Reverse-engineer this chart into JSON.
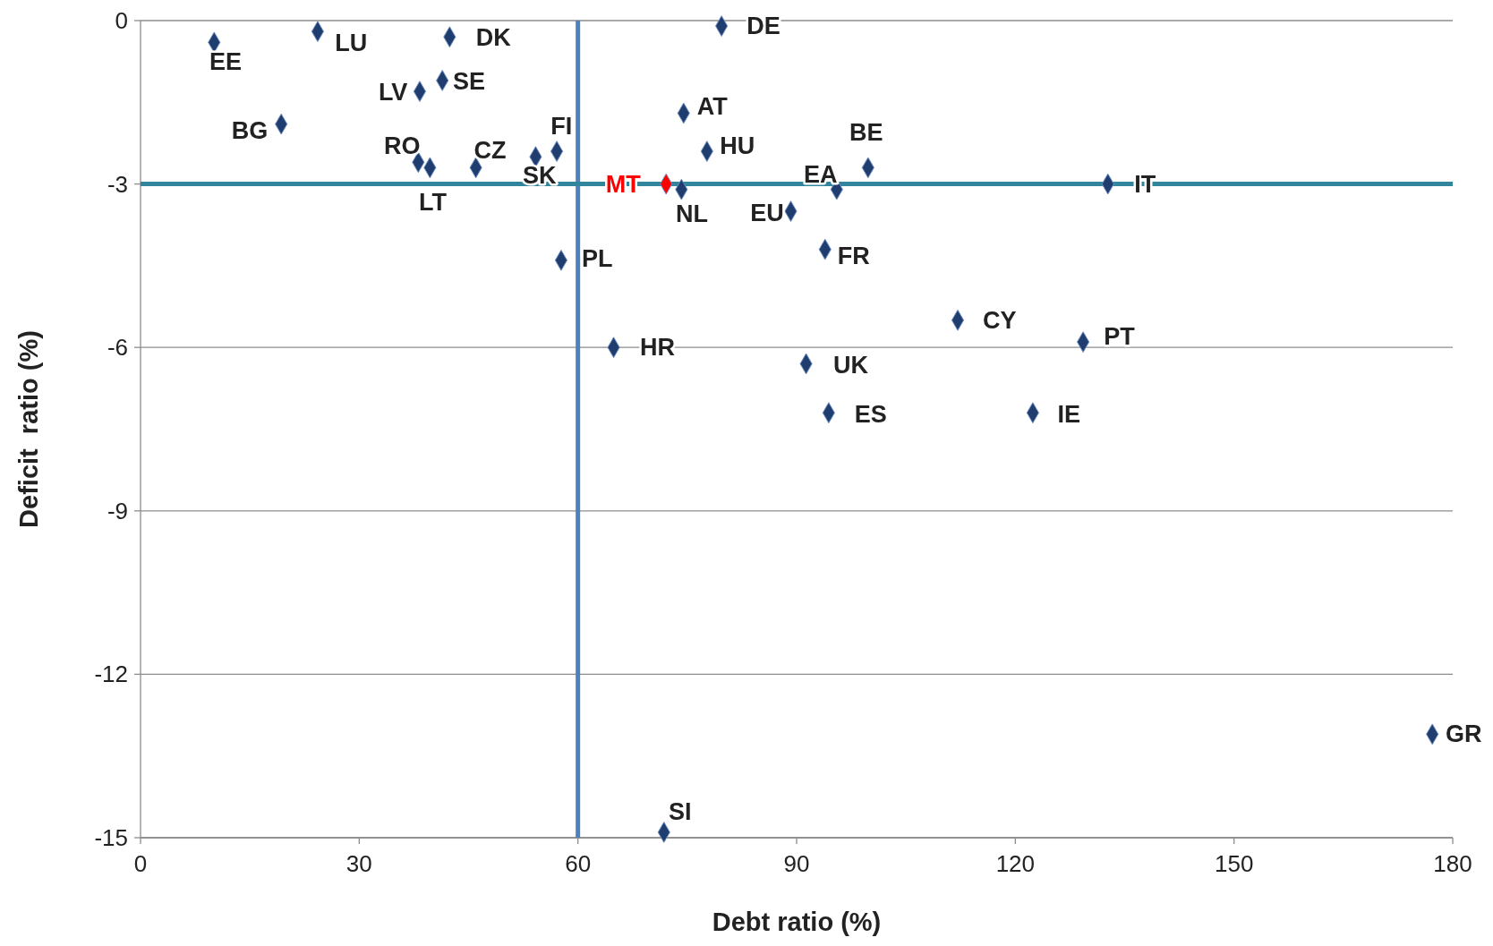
{
  "chart_data": {
    "type": "scatter",
    "xlabel": "Debt ratio (%)",
    "ylabel": "Deficit  ratio (%)",
    "xlim": [
      0,
      180
    ],
    "xticks": [
      0,
      30,
      60,
      90,
      120,
      150,
      180
    ],
    "ylim": [
      -15,
      0
    ],
    "yticks": [
      -15,
      -12,
      -9,
      -6,
      -3,
      0
    ],
    "grid": "y",
    "marker": "diamond",
    "x": [
      10.1,
      24.3,
      42.4,
      79.7,
      41.4,
      38.3,
      19.3,
      74.5,
      57.1,
      77.7,
      38.1,
      39.7,
      46.0,
      54.2,
      99.8,
      72.1,
      74.2,
      95.5,
      132.7,
      89.2,
      93.9,
      57.7,
      112.1,
      129.3,
      64.9,
      91.3,
      94.4,
      122.4,
      177.2,
      71.8
    ],
    "values": [
      -0.4,
      -0.2,
      -0.3,
      -0.1,
      -1.1,
      -1.3,
      -1.9,
      -1.7,
      -2.4,
      -2.4,
      -2.6,
      -2.7,
      -2.7,
      -2.5,
      -2.7,
      -3.0,
      -3.1,
      -3.1,
      -3.0,
      -3.5,
      -4.2,
      -4.4,
      -5.5,
      -5.9,
      -6.0,
      -6.3,
      -7.2,
      -7.2,
      -13.1,
      -14.9
    ],
    "colors": [
      "#1f3d6e",
      "#1f3d6e",
      "#1f3d6e",
      "#1f3d6e",
      "#1f3d6e",
      "#1f3d6e",
      "#1f3d6e",
      "#1f3d6e",
      "#1f3d6e",
      "#1f3d6e",
      "#1f3d6e",
      "#1f3d6e",
      "#1f3d6e",
      "#1f3d6e",
      "#1f3d6e",
      "#ff0000",
      "#1f3d6e",
      "#1f3d6e",
      "#1f3d6e",
      "#1f3d6e",
      "#1f3d6e",
      "#1f3d6e",
      "#1f3d6e",
      "#1f3d6e",
      "#1f3d6e",
      "#1f3d6e",
      "#1f3d6e",
      "#1f3d6e",
      "#1f3d6e",
      "#1f3d6e"
    ],
    "ref_lines": [
      {
        "axis": "x",
        "value": 60,
        "color": "#4f81bd"
      },
      {
        "axis": "y",
        "value": -3,
        "color": "#31859c"
      }
    ],
    "annotations": [
      {
        "text": "EE",
        "x": 10.1,
        "y": -0.4
      },
      {
        "text": "LU",
        "x": 24.3,
        "y": -0.2
      },
      {
        "text": "DK",
        "x": 42.4,
        "y": -0.3
      },
      {
        "text": "DE",
        "x": 79.7,
        "y": -0.1
      },
      {
        "text": "SE",
        "x": 41.4,
        "y": -1.1
      },
      {
        "text": "LV",
        "x": 38.3,
        "y": -1.3
      },
      {
        "text": "BG",
        "x": 19.3,
        "y": -1.9
      },
      {
        "text": "AT",
        "x": 74.5,
        "y": -1.7
      },
      {
        "text": "FI",
        "x": 57.1,
        "y": -2.4
      },
      {
        "text": "HU",
        "x": 77.7,
        "y": -2.4
      },
      {
        "text": "RO",
        "x": 38.1,
        "y": -2.6
      },
      {
        "text": "LT",
        "x": 39.7,
        "y": -2.7
      },
      {
        "text": "CZ",
        "x": 46.0,
        "y": -2.7
      },
      {
        "text": "SK",
        "x": 54.2,
        "y": -2.5
      },
      {
        "text": "BE",
        "x": 99.8,
        "y": -2.7
      },
      {
        "text": "MT",
        "x": 72.1,
        "y": -3.0
      },
      {
        "text": "NL",
        "x": 74.2,
        "y": -3.1
      },
      {
        "text": "EA",
        "x": 95.5,
        "y": -3.1
      },
      {
        "text": "IT",
        "x": 132.7,
        "y": -3.0
      },
      {
        "text": "EU",
        "x": 89.2,
        "y": -3.5
      },
      {
        "text": "FR",
        "x": 93.9,
        "y": -4.2
      },
      {
        "text": "PL",
        "x": 57.7,
        "y": -4.4
      },
      {
        "text": "CY",
        "x": 112.1,
        "y": -5.5
      },
      {
        "text": "PT",
        "x": 129.3,
        "y": -5.9
      },
      {
        "text": "HR",
        "x": 64.9,
        "y": -6.0
      },
      {
        "text": "UK",
        "x": 91.3,
        "y": -6.3
      },
      {
        "text": "ES",
        "x": 94.4,
        "y": -7.2
      },
      {
        "text": "IE",
        "x": 122.4,
        "y": -7.2
      },
      {
        "text": "GR",
        "x": 177.2,
        "y": -13.1
      },
      {
        "text": "SI",
        "x": 71.8,
        "y": -14.9
      }
    ]
  }
}
